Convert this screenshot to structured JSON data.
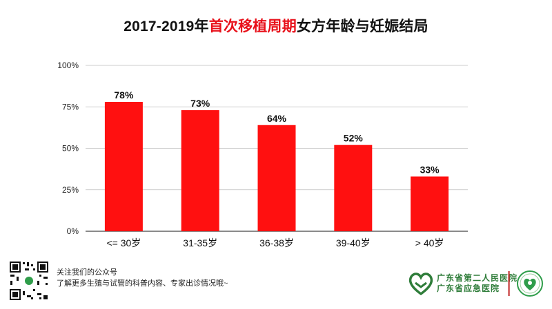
{
  "title": {
    "part1": "2017-2019年",
    "highlight": "首次移植周期",
    "part2": "女方年龄与妊娠结局"
  },
  "chart_data": {
    "type": "bar",
    "title": "2017-2019年首次移植周期女方年龄与妊娠结局",
    "categories": [
      "<= 30岁",
      "31-35岁",
      "36-38岁",
      "39-40岁",
      "> 40岁"
    ],
    "values": [
      78,
      73,
      64,
      52,
      33
    ],
    "data_labels": [
      "78%",
      "73%",
      "64%",
      "52%",
      "33%"
    ],
    "ylim": [
      0,
      100
    ],
    "yticks": [
      0,
      25,
      50,
      75,
      100
    ],
    "ytick_labels": [
      "0%",
      "25%",
      "50%",
      "75%",
      "100%"
    ],
    "grid": true,
    "bar_color": "#ff1010"
  },
  "footer": {
    "line1": "关注我们的公众号",
    "line2": "了解更多生殖与试管的科普内容、专家出诊情况哦~"
  },
  "hospital": {
    "name1": "广东省第二人民医院",
    "name2": "广东省应急医院",
    "logo_color": "#2f7d3a",
    "logo_accent": "#e8101a"
  }
}
